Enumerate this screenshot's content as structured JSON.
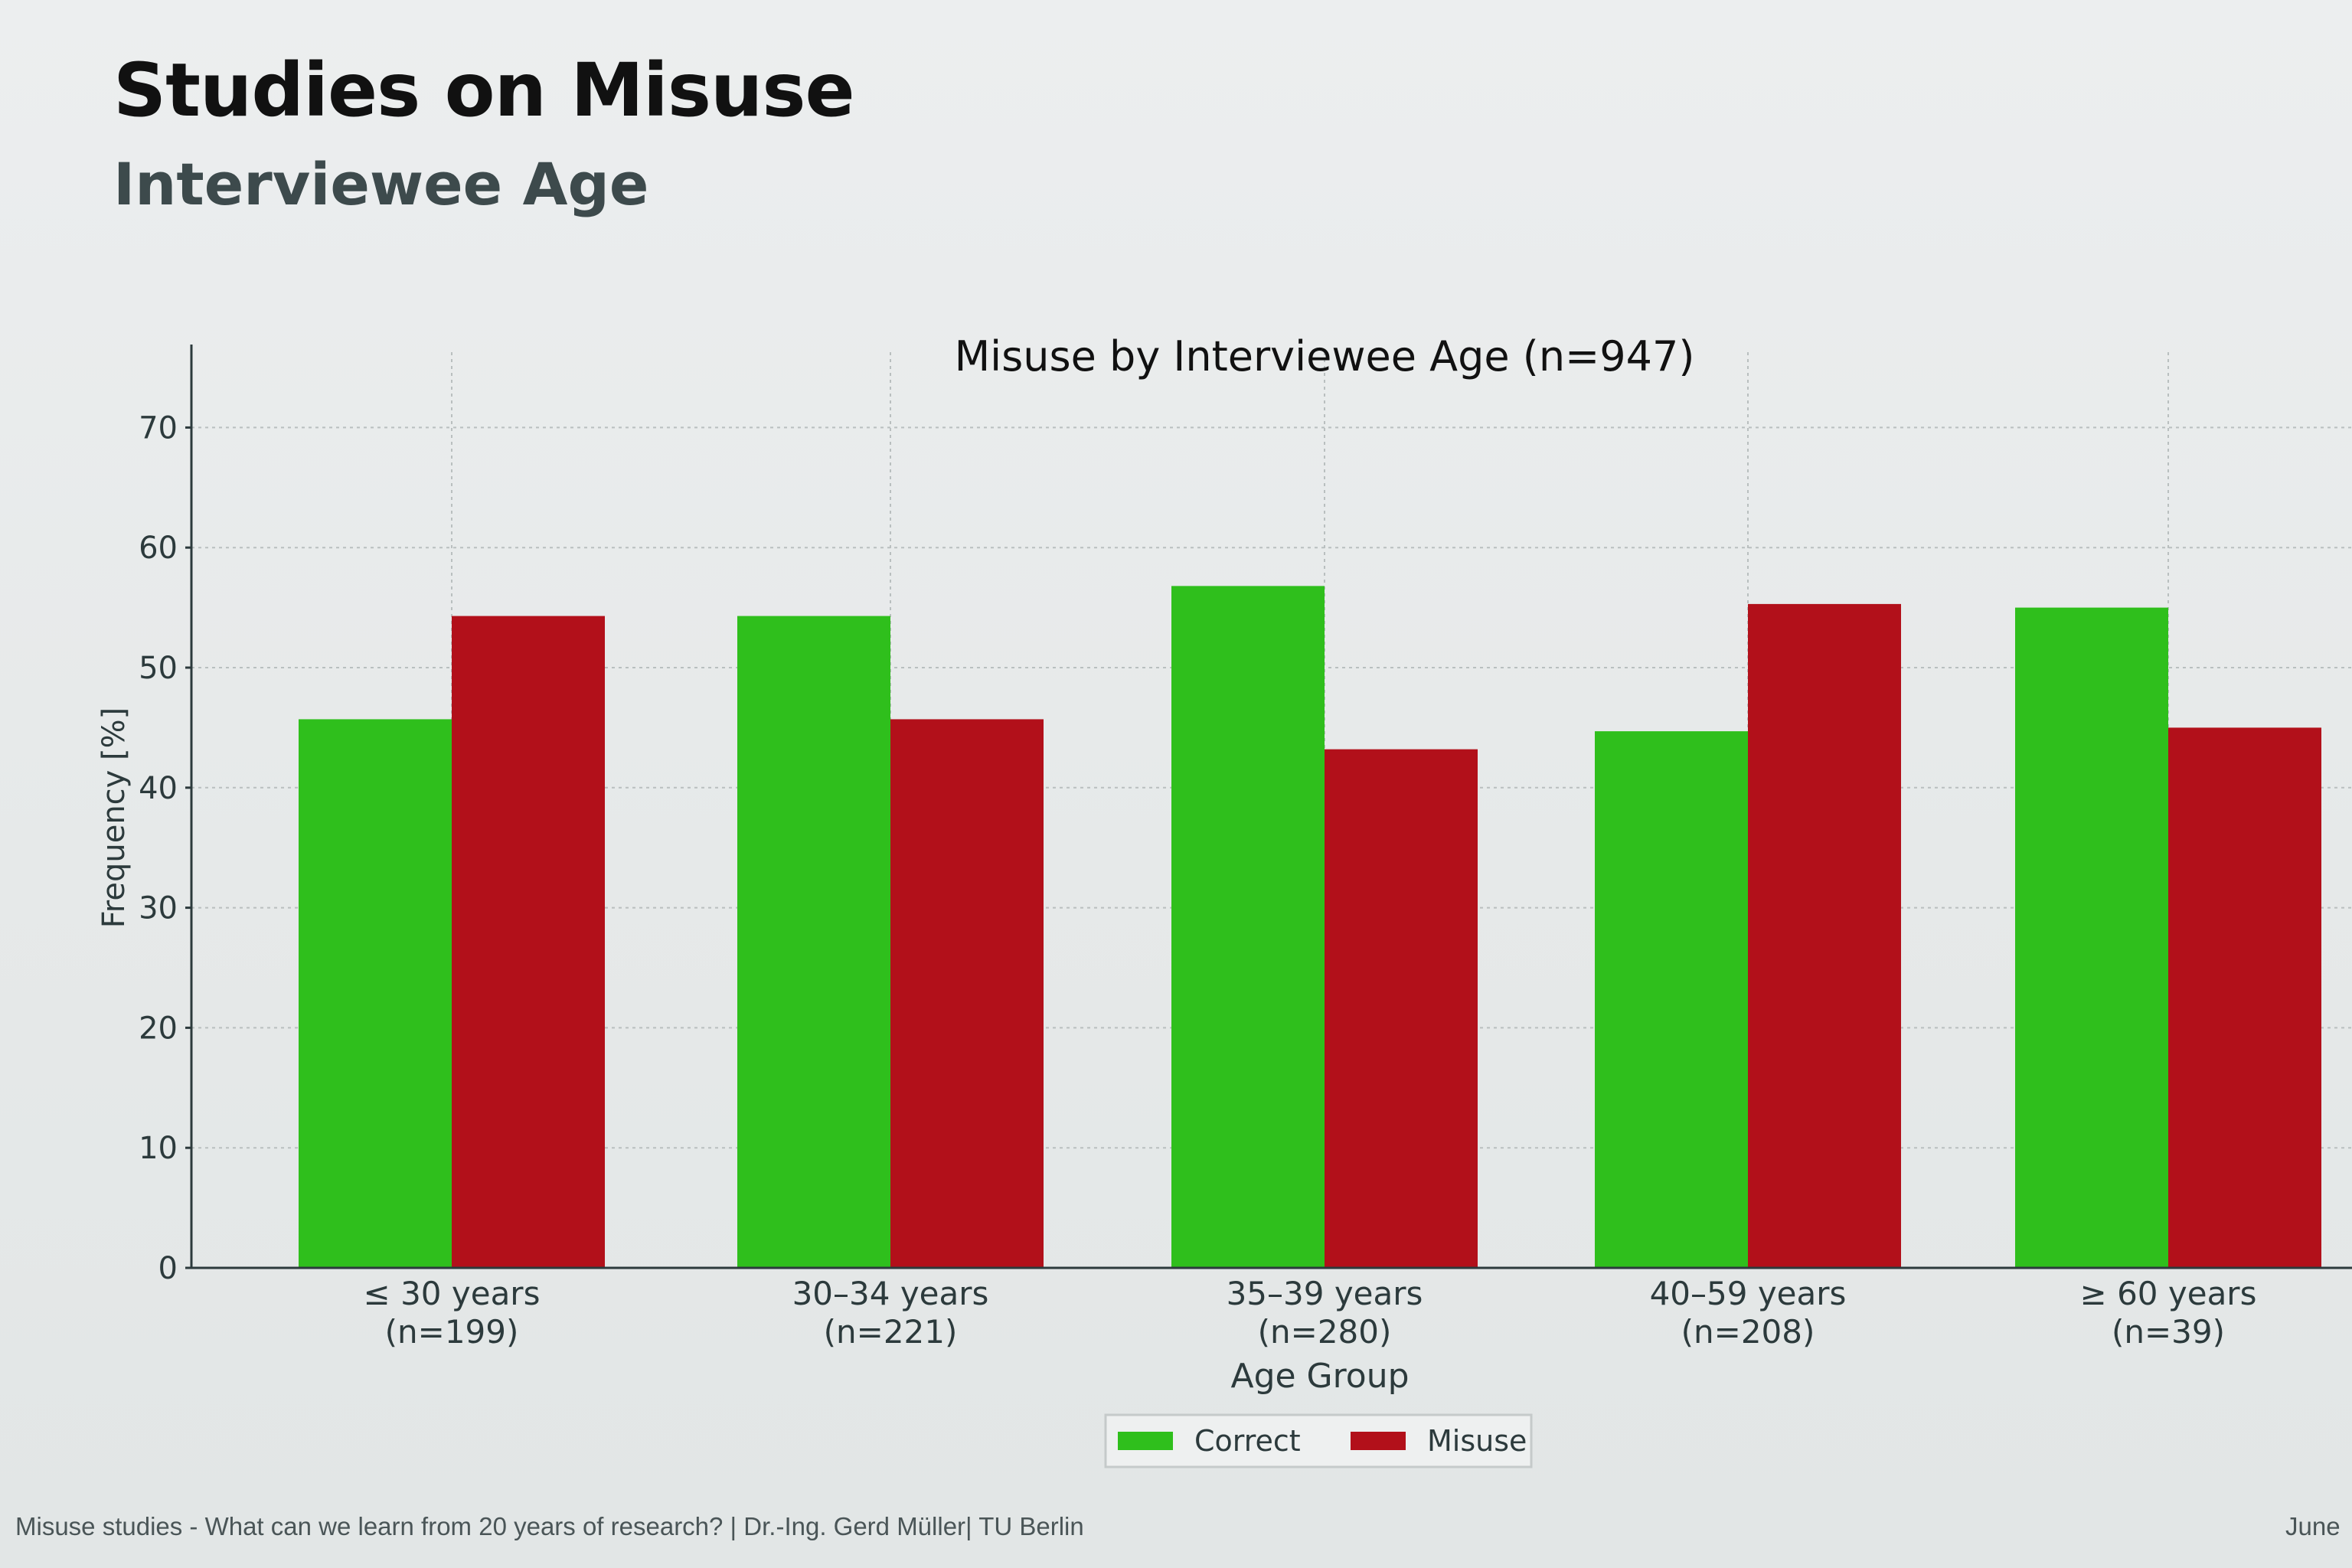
{
  "slide": {
    "title": "Studies on Misuse",
    "subtitle": "Interviewee Age",
    "footer": "Misuse studies - What can we learn from 20 years of research? | Dr.-Ing. Gerd Müller| TU Berlin",
    "footer_right": "June"
  },
  "chart_data": {
    "type": "bar",
    "title": "Misuse by Interviewee Age (n=947)",
    "xlabel": "Age Group",
    "ylabel": "Frequency [%]",
    "ylim": [
      0,
      75
    ],
    "yticks": [
      0,
      10,
      20,
      30,
      40,
      50,
      60,
      70
    ],
    "grid": true,
    "legend_position": "bottom-center",
    "categories": [
      "≤ 30 years\n(n=199)",
      "30–34 years\n(n=221)",
      "35–39 years\n(n=280)",
      "40–59 years\n(n=208)",
      "≥ 60 years\n(n=39)"
    ],
    "series": [
      {
        "name": "Correct",
        "color": "#2fbf1c",
        "values": [
          45.7,
          54.3,
          56.8,
          44.7,
          55.0
        ]
      },
      {
        "name": "Misuse",
        "color": "#b2101a",
        "values": [
          54.3,
          45.7,
          43.2,
          55.3,
          45.0
        ]
      }
    ]
  }
}
